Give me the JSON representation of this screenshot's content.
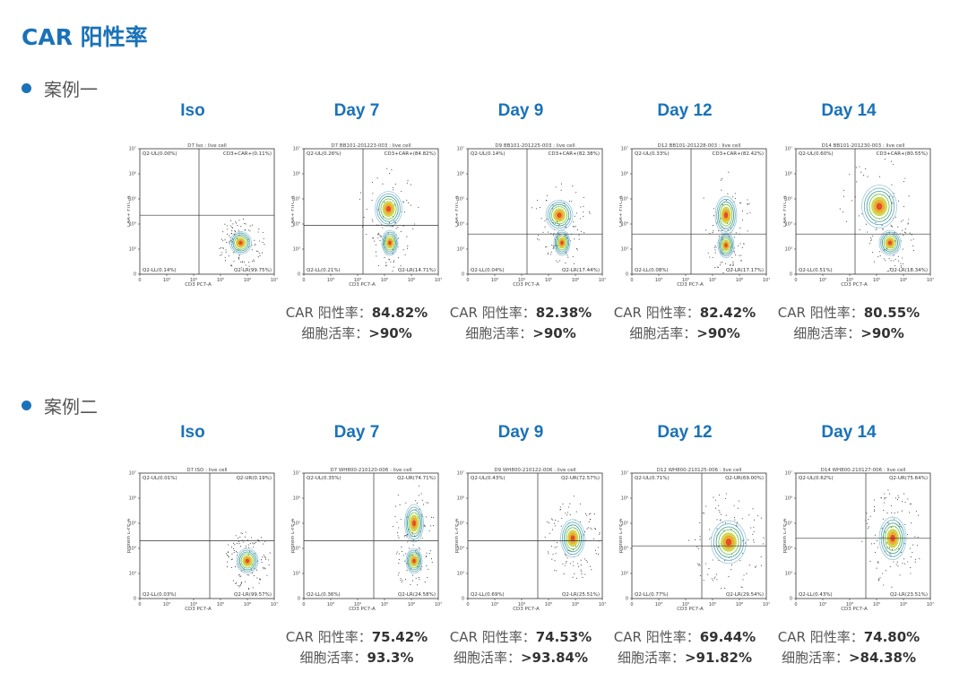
{
  "page_title": "CAR 阳性率",
  "colors": {
    "accent": "#1a72b8",
    "text": "#555555"
  },
  "axis_labels": {
    "x": "CD3 PC7-A",
    "y_case1": "CAR+ FITC-A",
    "y_case2": "protein L-FE-A"
  },
  "stat_labels": {
    "car": "CAR 阳性率：",
    "viability": "细胞活率："
  },
  "cases": [
    {
      "label": "案例一",
      "panels": [
        {
          "title": "Iso",
          "plot_title": "D7 Iso : live cell",
          "quadrants": {
            "ul": "Q2-UL(0.00%)",
            "ur": "CD3+CAR+(0.11%)",
            "ll": "Q2-LL(0.14%)",
            "lr": "Q2-LR(99.75%)"
          }
        },
        {
          "title": "Day 7",
          "plot_title": "D7 BB101-201223-003 : live cell",
          "quadrants": {
            "ul": "Q2-UL(0.26%)",
            "ur": "CD3+CAR+(84.82%)",
            "ll": "Q2-LL(0.21%)",
            "lr": "Q2-LR(14.71%)"
          },
          "car": "84.82%",
          "viability": ">90%"
        },
        {
          "title": "Day 9",
          "plot_title": "D9 BB101-201225-003 : live cell",
          "quadrants": {
            "ul": "Q2-UL(0.14%)",
            "ur": "CD3+CAR+(82.38%)",
            "ll": "Q2-LL(0.04%)",
            "lr": "Q2-LR(17.44%)"
          },
          "car": "82.38%",
          "viability": ">90%"
        },
        {
          "title": "Day 12",
          "plot_title": "D12 BB101-201228-003 : live cell",
          "quadrants": {
            "ul": "Q2-UL(0.33%)",
            "ur": "CD3+CAR+(82.42%)",
            "ll": "Q2-LL(0.08%)",
            "lr": "Q2-LR(17.17%)"
          },
          "car": "82.42%",
          "viability": ">90%"
        },
        {
          "title": "Day 14",
          "plot_title": "D14 BB101-201230-003 : live cell",
          "quadrants": {
            "ul": "Q2-UL(0.60%)",
            "ur": "CD3+CAR+(80.55%)",
            "ll": "Q2-LL(0.51%)",
            "lr": "Q2-LR(18.34%)"
          },
          "car": "80.55%",
          "viability": ">90%"
        }
      ]
    },
    {
      "label": "案例二",
      "panels": [
        {
          "title": "Iso",
          "plot_title": "D7 ISO : live cell",
          "quadrants": {
            "ul": "Q2-UL(0.01%)",
            "ur": "Q2-UR(0.19%)",
            "ll": "Q2-LL(0.03%)",
            "lr": "Q2-LR(99.57%)"
          }
        },
        {
          "title": "Day 7",
          "plot_title": "D7 WH800-210120-006 : live cell",
          "quadrants": {
            "ul": "Q2-UL(0.35%)",
            "ur": "Q2-UR(74.71%)",
            "ll": "Q2-LL(0.36%)",
            "lr": "Q2-LR(24.58%)"
          },
          "car": "75.42%",
          "viability": "93.3%"
        },
        {
          "title": "Day 9",
          "plot_title": "D9 WH800-210122-006 : live cell",
          "quadrants": {
            "ul": "Q2-UL(0.43%)",
            "ur": "Q2-UR(72.57%)",
            "ll": "Q2-LL(0.69%)",
            "lr": "Q2-LR(25.51%)"
          },
          "car": "74.53%",
          "viability": ">93.84%"
        },
        {
          "title": "Day 12",
          "plot_title": "D12 WH800-210125-006 : live cell",
          "quadrants": {
            "ul": "Q2-UL(0.71%)",
            "ur": "Q2-UR(69.00%)",
            "ll": "Q2-LL(0.77%)",
            "lr": "Q2-LR(29.54%)"
          },
          "car": "69.44%",
          "viability": ">91.82%"
        },
        {
          "title": "Day 14",
          "plot_title": "D14 WH800-210127-006 : live cell",
          "quadrants": {
            "ul": "Q2-UL(0.62%)",
            "ur": "Q2-UR(75.64%)",
            "ll": "Q2-LL(0.43%)",
            "lr": "Q2-LR(23.51%)"
          },
          "car": "74.80%",
          "viability": ">84.38%"
        }
      ]
    }
  ],
  "chart_data": {
    "type": "scatter",
    "note_type": "flow cytometry density plots",
    "xlabel": "CD3 PC7-A",
    "x_ticks": [
      "0",
      "10³",
      "10⁴",
      "10⁵",
      "10⁶",
      "10⁷"
    ],
    "y_ticks": [
      "0",
      "10³",
      "10⁴",
      "10⁵",
      "10⁶",
      "10⁷"
    ],
    "series": [
      {
        "name": "案例一",
        "categories": [
          "Day 7",
          "Day 9",
          "Day 12",
          "Day 14"
        ],
        "values": [
          84.82,
          82.38,
          82.42,
          80.55
        ]
      },
      {
        "name": "案例二",
        "categories": [
          "Day 7",
          "Day 9",
          "Day 12",
          "Day 14"
        ],
        "values": [
          75.42,
          74.53,
          69.44,
          74.8
        ]
      }
    ]
  }
}
